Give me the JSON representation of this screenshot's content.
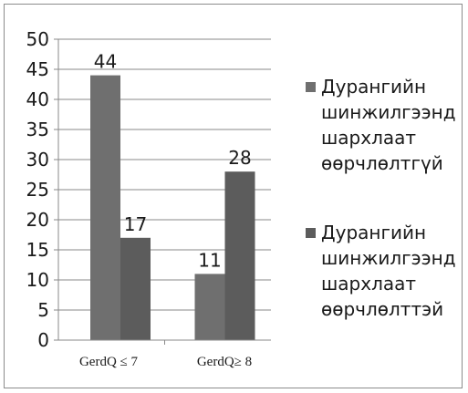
{
  "chart_data": {
    "type": "bar",
    "categories": [
      "GerdQ ≤ 7",
      "GerdQ≥ 8"
    ],
    "series": [
      {
        "name": "Дурангийн\nшинжилгээнд\nшархлаат\nөөрчлөлтгүй",
        "values": [
          44,
          11
        ],
        "color": "#6f6f6f"
      },
      {
        "name": "Дурангийн\nшинжилгээнд\nшархлаат\nөөрчлөлттэй",
        "values": [
          17,
          28
        ],
        "color": "#5c5c5c"
      }
    ],
    "title": "",
    "xlabel": "",
    "ylabel": "",
    "ylim": [
      0,
      50
    ],
    "yticks": [
      0,
      5,
      10,
      15,
      20,
      25,
      30,
      35,
      40,
      45,
      50
    ],
    "grid": true,
    "legend": "right",
    "data_labels": true
  }
}
